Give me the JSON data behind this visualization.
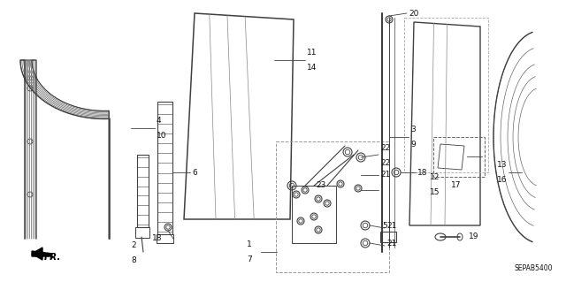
{
  "bg_color": "#ffffff",
  "diagram_code": "SEPAB5400",
  "line_color": "#404040",
  "text_color": "#111111",
  "font_size": 6.5
}
